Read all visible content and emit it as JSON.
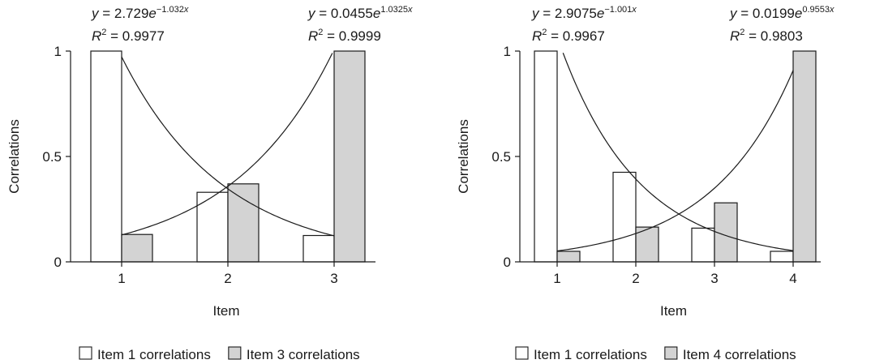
{
  "chart_data": [
    {
      "type": "bar",
      "categories": [
        "1",
        "2",
        "3"
      ],
      "xlabel": "Item",
      "ylabel": "Correlations",
      "ylim": [
        0,
        1
      ],
      "yticks": [
        "0",
        "0.5",
        "1"
      ],
      "series": [
        {
          "name": "Item 1 correlations",
          "values": [
            1.0,
            0.33,
            0.125
          ],
          "color": "#ffffff"
        },
        {
          "name": "Item 3 correlations",
          "values": [
            0.13,
            0.37,
            1.0
          ],
          "color": "#d3d3d3"
        }
      ],
      "trendlines": [
        {
          "a": 2.729,
          "b": -1.032,
          "coef": "2.729",
          "exp": "−1.032",
          "r2": "0.9977",
          "position": "top-left"
        },
        {
          "a": 0.0455,
          "b": 1.0325,
          "coef": "0.0455",
          "exp": "1.0325",
          "r2": "0.9999",
          "position": "top-right"
        }
      ],
      "grid": false,
      "legend_position": "bottom"
    },
    {
      "type": "bar",
      "categories": [
        "1",
        "2",
        "3",
        "4"
      ],
      "xlabel": "Item",
      "ylabel": "Correlations",
      "ylim": [
        0,
        1
      ],
      "yticks": [
        "0",
        "0.5",
        "1"
      ],
      "series": [
        {
          "name": "Item 1 correlations",
          "values": [
            1.0,
            0.425,
            0.16,
            0.05
          ],
          "color": "#ffffff"
        },
        {
          "name": "Item 4 correlations",
          "values": [
            0.05,
            0.165,
            0.28,
            1.0
          ],
          "color": "#d3d3d3"
        }
      ],
      "trendlines": [
        {
          "a": 2.9075,
          "b": -1.001,
          "coef": "2.9075",
          "exp": "−1.001",
          "r2": "0.9967",
          "position": "top-left"
        },
        {
          "a": 0.0199,
          "b": 0.9553,
          "coef": "0.0199",
          "exp": "0.9553",
          "r2": "0.9803",
          "position": "top-right"
        }
      ],
      "grid": false,
      "legend_position": "bottom"
    }
  ]
}
